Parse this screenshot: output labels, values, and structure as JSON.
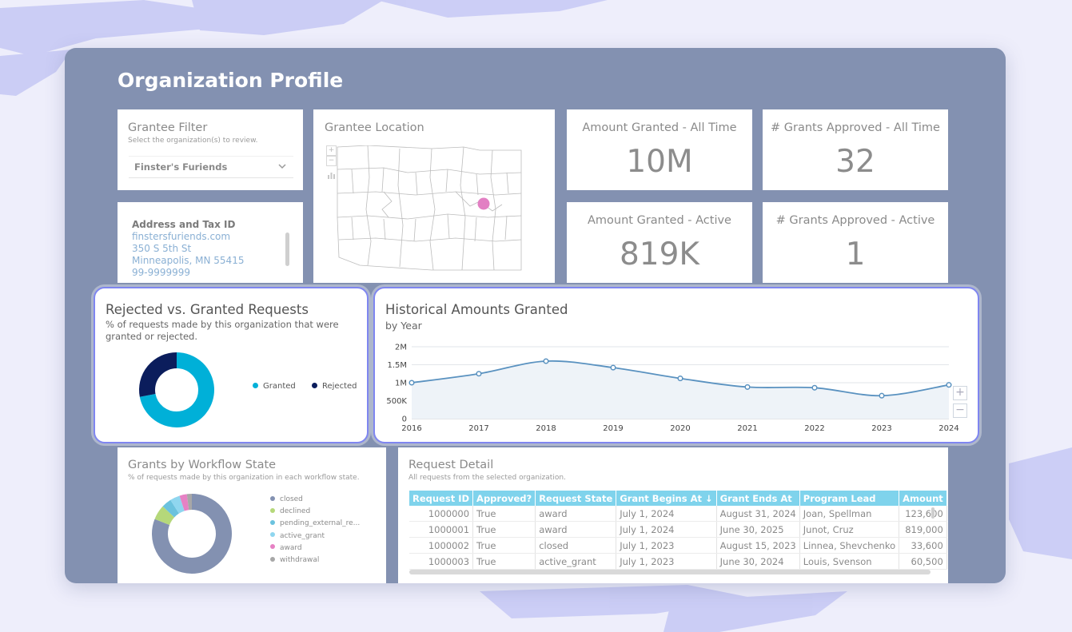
{
  "colors": {
    "frame_bg": "#8391b1",
    "granted": "#00b0d8",
    "rejected": "#0b1d5c",
    "line": "#5a92c0",
    "table_header": "#7fd3ec"
  },
  "page": {
    "title": "Organization Profile"
  },
  "grantee_filter": {
    "title": "Grantee Filter",
    "subtitle": "Select the organization(s) to review.",
    "selected": "Finster's Furiends",
    "icon": "chevron-down-icon"
  },
  "address": {
    "title": "Address and Tax ID",
    "website": "finstersfuriends.com",
    "street": "350 S 5th St",
    "city": "Minneapolis, MN 55415",
    "tax_id": "99-9999999"
  },
  "map": {
    "title": "Grantee Location",
    "controls": {
      "zoom_in": "+",
      "zoom_out": "−"
    }
  },
  "kpis": {
    "amount_all_time": {
      "title": "Amount Granted - All Time",
      "value": "10M"
    },
    "grants_all_time": {
      "title": "# Grants Approved - All Time",
      "value": "32"
    },
    "amount_active": {
      "title": "Amount Granted - Active",
      "value": "819K"
    },
    "grants_active": {
      "title": "# Grants Approved - Active",
      "value": "1"
    }
  },
  "rejected_vs_granted": {
    "title": "Rejected vs. Granted Requests",
    "subtitle": "% of requests made by this organization that were granted or rejected.",
    "legend": [
      "Granted",
      "Rejected"
    ],
    "chart_data": {
      "type": "pie",
      "donut": true,
      "categories": [
        "Granted",
        "Rejected"
      ],
      "values": [
        72,
        28
      ],
      "colors": [
        "#00b0d8",
        "#0b1d5c"
      ]
    }
  },
  "historical": {
    "title": "Historical Amounts Granted",
    "subtitle": "by Year",
    "zoom_in": "+",
    "zoom_out": "−",
    "chart_data": {
      "type": "area",
      "title": "Historical Amounts Granted",
      "subtitle": "by Year",
      "x": [
        2016,
        2017,
        2018,
        2019,
        2020,
        2021,
        2022,
        2023,
        2024
      ],
      "values": [
        1000000,
        1250000,
        1600000,
        1420000,
        1120000,
        880000,
        860000,
        640000,
        940000
      ],
      "ylim": [
        0,
        2000000
      ],
      "yticks": [
        0,
        500000,
        1000000,
        1500000,
        2000000
      ],
      "ytick_labels": [
        "0",
        "500K",
        "1M",
        "1.5M",
        "2M"
      ],
      "xtick_labels": [
        "2016",
        "2017",
        "2018",
        "2019",
        "2020",
        "2021",
        "2022",
        "2023",
        "2024"
      ],
      "grid": true
    }
  },
  "workflow": {
    "title": "Grants by Workflow State",
    "subtitle": "% of requests made by this organization in each workflow state.",
    "legend": [
      {
        "label": "closed",
        "color": "#8391b1"
      },
      {
        "label": "declined",
        "color": "#b5d87a"
      },
      {
        "label": "pending_external_re...",
        "color": "#6bc2de"
      },
      {
        "label": "active_grant",
        "color": "#8fd6ef"
      },
      {
        "label": "award",
        "color": "#e681c4"
      },
      {
        "label": "withdrawal",
        "color": "#a7a7a7"
      }
    ],
    "chart_data": {
      "type": "pie",
      "donut": true,
      "categories": [
        "closed",
        "declined",
        "pending_external_re...",
        "active_grant",
        "award",
        "withdrawal"
      ],
      "values": [
        81,
        6,
        4,
        4,
        3,
        2
      ]
    }
  },
  "request_detail": {
    "title": "Request Detail",
    "subtitle": "All requests from the selected organization.",
    "sort_icon": "↓",
    "columns": [
      "Request ID",
      "Approved?",
      "Request State",
      "Grant Begins At",
      "Grant Ends At",
      "Program Lead",
      "Amount"
    ],
    "rows": [
      [
        "1000000",
        "True",
        "award",
        "July 1, 2024",
        "August 31, 2024",
        "Joan, Spellman",
        "123,600"
      ],
      [
        "1000001",
        "True",
        "award",
        "July 1, 2024",
        "June 30, 2025",
        "Junot, Cruz",
        "819,000"
      ],
      [
        "1000002",
        "True",
        "closed",
        "July 1, 2023",
        "August 15, 2023",
        "Linnea, Shevchenko",
        "33,600"
      ],
      [
        "1000003",
        "True",
        "active_grant",
        "July 1, 2023",
        "June 30, 2024",
        "Louis, Svenson",
        "60,500"
      ]
    ]
  }
}
